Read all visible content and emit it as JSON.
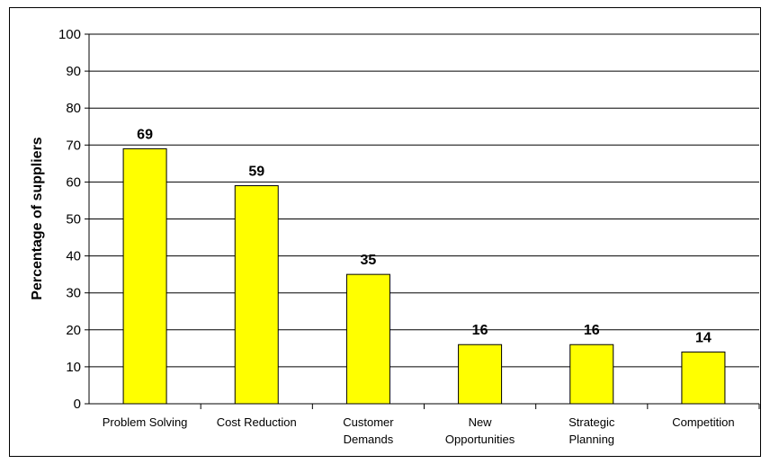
{
  "chart_data": {
    "type": "bar",
    "categories": [
      "Problem Solving",
      "Cost Reduction",
      "Customer Demands",
      "New Opportunities",
      "Strategic Planning",
      "Competition"
    ],
    "category_lines": [
      [
        "Problem Solving"
      ],
      [
        "Cost Reduction"
      ],
      [
        "Customer",
        "Demands"
      ],
      [
        "New",
        "Opportunities"
      ],
      [
        "Strategic",
        "Planning"
      ],
      [
        "Competition"
      ]
    ],
    "values": [
      69,
      59,
      35,
      16,
      16,
      14
    ],
    "data_labels": [
      "69",
      "59",
      "35",
      "16",
      "16",
      "14"
    ],
    "ylabel": "Percentage of suppliers",
    "ylim": [
      0,
      100
    ],
    "yticks": [
      0,
      10,
      20,
      30,
      40,
      50,
      60,
      70,
      80,
      90,
      100
    ],
    "grid": true,
    "bar_color": "#ffff00"
  }
}
